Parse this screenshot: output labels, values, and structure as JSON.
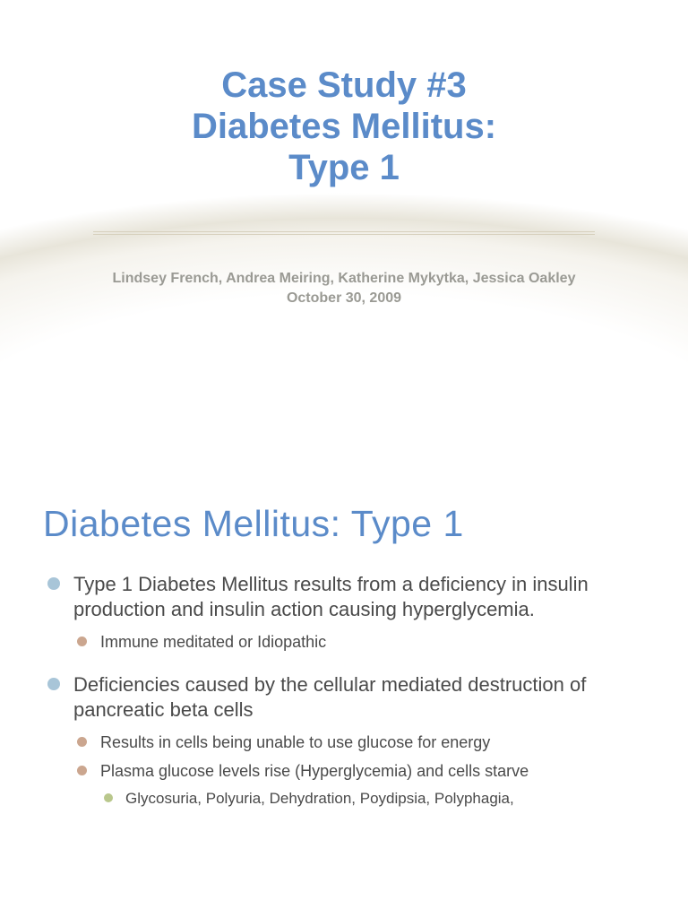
{
  "slide1": {
    "title_line1": "Case Study #3",
    "title_line2": "Diabetes Mellitus:",
    "title_line3": "Type 1",
    "authors": "Lindsey French, Andrea Meiring, Katherine Mykytka, Jessica Oakley",
    "date": "October 30, 2009",
    "title_color": "#5b8bc9",
    "title_fontsize": 40,
    "author_color": "#9a9a94",
    "divider_color": "#d7d0bd"
  },
  "slide2": {
    "title": "Diabetes Mellitus: Type 1",
    "title_color": "#5b8bc9",
    "title_fontsize": 41,
    "body_color": "#4a4a4a",
    "bullets": {
      "lvl1_color": "#a8c5d8",
      "lvl2_color": "#cba68f",
      "lvl3_color": "#b9c78c"
    },
    "items": [
      {
        "text": "Type 1 Diabetes Mellitus results from a deficiency in insulin production and insulin action causing hyperglycemia.",
        "children": [
          {
            "text": "Immune meditated or Idiopathic"
          }
        ]
      },
      {
        "text": "Deficiencies caused by the cellular mediated destruction of pancreatic beta cells",
        "children": [
          {
            "text": "Results in cells being unable to use glucose for energy"
          },
          {
            "text": "Plasma glucose levels rise (Hyperglycemia) and cells starve",
            "children": [
              {
                "text": "Glycosuria, Polyuria, Dehydration, Poydipsia, Polyphagia,"
              }
            ]
          }
        ]
      }
    ]
  }
}
